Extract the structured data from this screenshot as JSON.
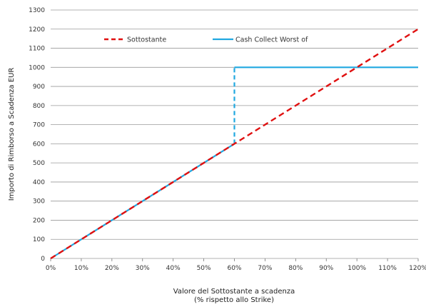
{
  "chart_data": {
    "type": "line",
    "xlabel": [
      "Valore del Sottostante a scadenza",
      "(% rispetto allo Strike)"
    ],
    "ylabel": "Importo di Rimborso a Scadenza EUR",
    "x_ticks": [
      "0%",
      "10%",
      "20%",
      "30%",
      "40%",
      "50%",
      "60%",
      "70%",
      "80%",
      "90%",
      "100%",
      "110%",
      "120%"
    ],
    "y_ticks": [
      "0",
      "100",
      "200",
      "300",
      "400",
      "500",
      "600",
      "700",
      "800",
      "900",
      "1000",
      "1100",
      "1200",
      "1300"
    ],
    "xlim": [
      0,
      120
    ],
    "ylim": [
      0,
      1300
    ],
    "grid": "horizontal",
    "legend_position": "top-left",
    "series": [
      {
        "name": "Sottostante",
        "color": "#e01010",
        "style": "dashed",
        "points": [
          [
            0,
            0
          ],
          [
            120,
            1200
          ]
        ]
      },
      {
        "name": "Cash Collect Worst of",
        "color": "#20a8e0",
        "style": "solid",
        "segments": [
          {
            "style": "solid",
            "points": [
              [
                0,
                0
              ],
              [
                60,
                600
              ]
            ]
          },
          {
            "style": "dashed",
            "points": [
              [
                60,
                600
              ],
              [
                60,
                1000
              ]
            ]
          },
          {
            "style": "solid",
            "points": [
              [
                60,
                1000
              ],
              [
                120,
                1000
              ]
            ]
          }
        ]
      }
    ]
  }
}
